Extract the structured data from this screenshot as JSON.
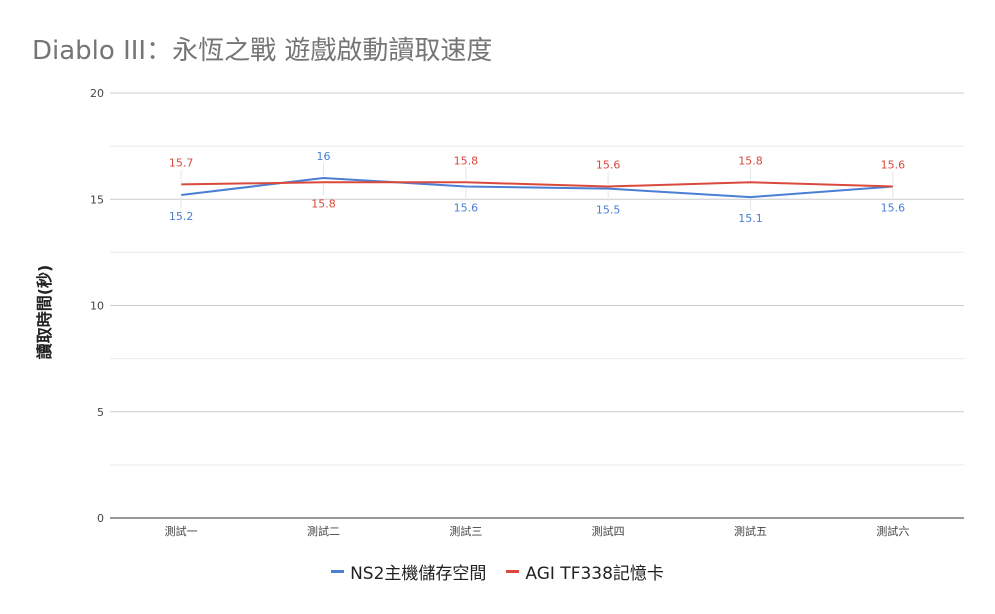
{
  "chart_data": {
    "type": "line",
    "title": "Diablo III：永恆之戰 遊戲啟動讀取速度",
    "xlabel": "",
    "ylabel": "讀取時間(秒)",
    "categories": [
      "測試一",
      "測試二",
      "測試三",
      "測試四",
      "測試五",
      "測試六"
    ],
    "ylim": [
      0,
      20
    ],
    "yticks": [
      0,
      5,
      10,
      15,
      20
    ],
    "grid": true,
    "legend_position": "bottom",
    "series": [
      {
        "name": "NS2主機儲存空間",
        "color": "#4a7fd4",
        "values": [
          15.2,
          16,
          15.6,
          15.5,
          15.1,
          15.6
        ],
        "labels": [
          "15.2",
          "16",
          "15.6",
          "15.5",
          "15.1",
          "15.6"
        ]
      },
      {
        "name": "AGI TF338記憶卡",
        "color": "#d94a3d",
        "values": [
          15.7,
          15.8,
          15.8,
          15.6,
          15.8,
          15.6
        ],
        "labels": [
          "15.7",
          "15.8",
          "15.8",
          "15.6",
          "15.8",
          "15.6"
        ]
      }
    ]
  }
}
